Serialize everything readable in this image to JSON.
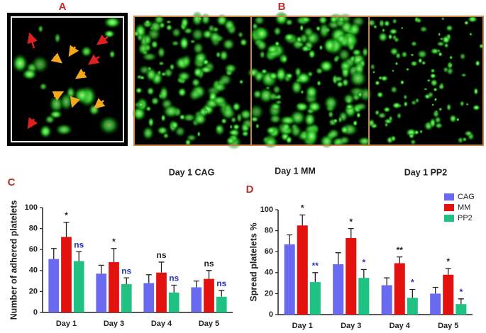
{
  "panels": {
    "a": "A",
    "b": "B",
    "c": "C",
    "d": "D"
  },
  "captions": [
    "Day 1 CAG",
    "Day 1 MM",
    "Day 1 PP2"
  ],
  "chart_data": [
    {
      "type": "bar",
      "ylabel": "Number of adhered platelets",
      "categories": [
        "Day 1",
        "Day 3",
        "Day 4",
        "Day 5"
      ],
      "series": [
        {
          "name": "CAG",
          "color": "#6a6af0",
          "values": [
            51,
            37,
            28,
            24
          ],
          "errors": [
            10,
            8,
            8,
            6
          ]
        },
        {
          "name": "MM",
          "color": "#e3120f",
          "values": [
            72,
            48,
            38,
            32
          ],
          "errors": [
            14,
            13,
            10,
            8
          ],
          "annotations": [
            "*",
            "*",
            "ns",
            "ns"
          ],
          "annotation_color": "#222222"
        },
        {
          "name": "PP2",
          "color": "#1fc283",
          "values": [
            49,
            27,
            19,
            15
          ],
          "errors": [
            9,
            6,
            7,
            6
          ],
          "annotations": [
            "ns",
            "ns",
            "ns",
            "ns"
          ],
          "annotation_color": "#2233bb"
        }
      ],
      "ylim": [
        0,
        100
      ],
      "yticks": [
        0,
        20,
        40,
        60,
        80,
        100
      ],
      "grid": false,
      "legend": false
    },
    {
      "type": "bar",
      "ylabel": "Spread platelets %",
      "categories": [
        "Day 1",
        "Day 3",
        "Day 4",
        "Day 5"
      ],
      "series": [
        {
          "name": "CAG",
          "color": "#6a6af0",
          "values": [
            67,
            48,
            28,
            20
          ],
          "errors": [
            9,
            11,
            7,
            6
          ]
        },
        {
          "name": "MM",
          "color": "#e3120f",
          "values": [
            85,
            73,
            49,
            38
          ],
          "errors": [
            10,
            9,
            6,
            6
          ],
          "annotations": [
            "*",
            "*",
            "**",
            "*"
          ],
          "annotation_color": "#222222"
        },
        {
          "name": "PP2",
          "color": "#1fc283",
          "values": [
            31,
            35,
            16,
            10
          ],
          "errors": [
            9,
            8,
            8,
            5
          ],
          "annotations": [
            "**",
            "*",
            "*",
            "*"
          ],
          "annotation_color": "#2233bb"
        }
      ],
      "ylim": [
        0,
        100
      ],
      "yticks": [
        0,
        20,
        40,
        60,
        80,
        100
      ],
      "grid": false,
      "legend": "upper right"
    }
  ]
}
